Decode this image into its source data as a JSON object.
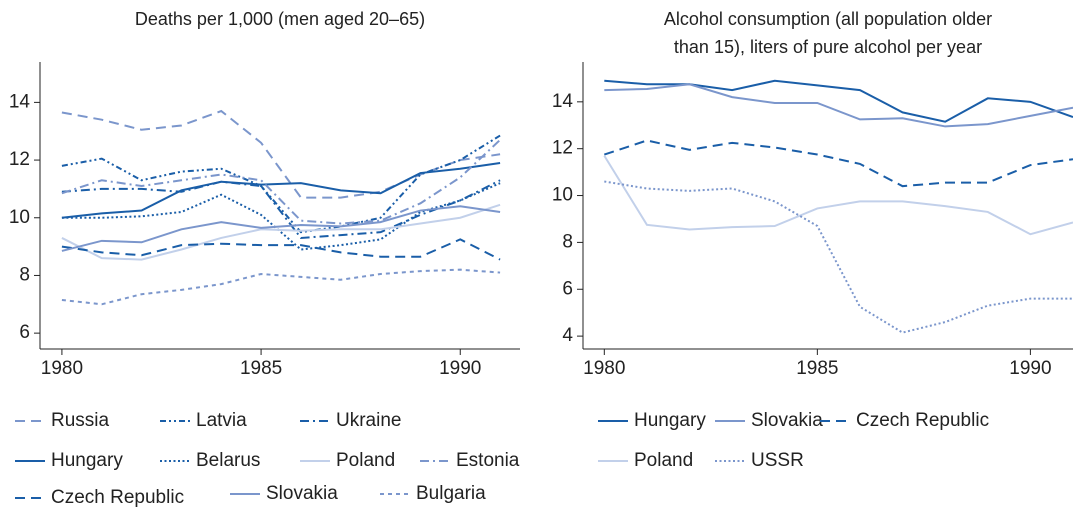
{
  "chart_data": [
    {
      "type": "line",
      "title": [
        "Deaths per 1,000 (men aged 20–65)"
      ],
      "x": [
        1980,
        1981,
        1982,
        1983,
        1984,
        1985,
        1986,
        1987,
        1988,
        1989,
        1990,
        1991
      ],
      "xlim": [
        1979.45,
        1991.5
      ],
      "xticks": [
        1980,
        1985,
        1990
      ],
      "ylim": [
        5.45,
        15.4
      ],
      "yticks": [
        6,
        8,
        10,
        12,
        14
      ],
      "series": [
        {
          "name": "Russia",
          "color": "#7b96cc",
          "dash": "dashed",
          "values": [
            13.65,
            13.4,
            13.05,
            13.2,
            13.7,
            12.6,
            10.7,
            10.7,
            10.9,
            11.5,
            12.0,
            12.2
          ]
        },
        {
          "name": "Latvia",
          "color": "#1a5ea8",
          "dash": "dashdotdot",
          "values": [
            11.8,
            12.05,
            11.3,
            11.6,
            11.7,
            11.1,
            9.5,
            9.7,
            10.0,
            11.5,
            12.0,
            12.85
          ]
        },
        {
          "name": "Ukraine",
          "color": "#1a5ea8",
          "dash": "dashdot",
          "values": [
            10.9,
            11.0,
            11.0,
            10.9,
            11.25,
            11.1,
            9.3,
            9.4,
            9.5,
            10.1,
            10.6,
            11.3
          ]
        },
        {
          "name": "Hungary",
          "color": "#1a5ea8",
          "dash": "solid",
          "values": [
            10.0,
            10.15,
            10.25,
            10.95,
            11.25,
            11.15,
            11.2,
            10.95,
            10.85,
            11.55,
            11.7,
            11.9
          ]
        },
        {
          "name": "Belarus",
          "color": "#1a5ea8",
          "dash": "dotted",
          "values": [
            10.0,
            10.0,
            10.05,
            10.2,
            10.8,
            10.1,
            8.9,
            9.05,
            9.25,
            10.2,
            10.6,
            11.2
          ]
        },
        {
          "name": "Poland",
          "color": "#c2d0ea",
          "dash": "solid",
          "values": [
            9.3,
            8.6,
            8.55,
            8.9,
            9.3,
            9.6,
            9.55,
            9.6,
            9.6,
            9.8,
            10.0,
            10.45
          ]
        },
        {
          "name": "Estonia",
          "color": "#7b96cc",
          "dash": "dashdot",
          "values": [
            10.85,
            11.3,
            11.1,
            11.3,
            11.5,
            11.3,
            9.9,
            9.8,
            9.9,
            10.5,
            11.4,
            12.7
          ]
        },
        {
          "name": "Czech Republic",
          "color": "#1a5ea8",
          "dash": "dashed",
          "values": [
            9.0,
            8.8,
            8.7,
            9.05,
            9.1,
            9.05,
            9.05,
            8.8,
            8.65,
            8.65,
            9.25,
            8.55
          ]
        },
        {
          "name": "Slovakia",
          "color": "#7b96cc",
          "dash": "solid",
          "values": [
            8.85,
            9.2,
            9.15,
            9.6,
            9.85,
            9.65,
            9.75,
            9.7,
            9.85,
            10.25,
            10.4,
            10.2
          ]
        },
        {
          "name": "Bulgaria",
          "color": "#7b96cc",
          "dash": "shortdash",
          "values": [
            7.15,
            7.0,
            7.35,
            7.5,
            7.7,
            8.05,
            7.95,
            7.85,
            8.05,
            8.15,
            8.2,
            8.1
          ]
        }
      ]
    },
    {
      "type": "line",
      "title": [
        "Alcohol consumption (all population older",
        "than 15), liters of pure alcohol per year"
      ],
      "x": [
        1980,
        1981,
        1982,
        1983,
        1984,
        1985,
        1986,
        1987,
        1988,
        1989,
        1990,
        1991
      ],
      "xlim": [
        1979.5,
        1991
      ],
      "xticks": [
        1980,
        1985,
        1990
      ],
      "ylim": [
        3.45,
        15.7
      ],
      "yticks": [
        4,
        6,
        8,
        10,
        12,
        14
      ],
      "series": [
        {
          "name": "Hungary",
          "color": "#1a5ea8",
          "dash": "solid",
          "values": [
            14.9,
            14.75,
            14.75,
            14.5,
            14.9,
            14.7,
            14.5,
            13.55,
            13.15,
            14.15,
            14.0,
            13.35
          ]
        },
        {
          "name": "Slovakia",
          "color": "#7b96cc",
          "dash": "solid",
          "values": [
            14.5,
            14.55,
            14.75,
            14.2,
            13.95,
            13.95,
            13.25,
            13.3,
            12.95,
            13.05,
            13.4,
            13.75
          ]
        },
        {
          "name": "Czech Republic",
          "color": "#1a5ea8",
          "dash": "dashed",
          "values": [
            11.75,
            12.35,
            11.95,
            12.25,
            12.05,
            11.75,
            11.35,
            10.4,
            10.55,
            10.55,
            11.3,
            11.55
          ]
        },
        {
          "name": "Poland",
          "color": "#c2d0ea",
          "dash": "solid",
          "values": [
            11.7,
            8.75,
            8.55,
            8.65,
            8.7,
            9.45,
            9.75,
            9.75,
            9.55,
            9.3,
            8.35,
            8.85
          ]
        },
        {
          "name": "USSR",
          "color": "#7b96cc",
          "dash": "dotted",
          "values": [
            10.6,
            10.3,
            10.2,
            10.3,
            9.75,
            8.7,
            5.25,
            4.15,
            4.6,
            5.3,
            5.6,
            5.6
          ]
        }
      ]
    }
  ]
}
